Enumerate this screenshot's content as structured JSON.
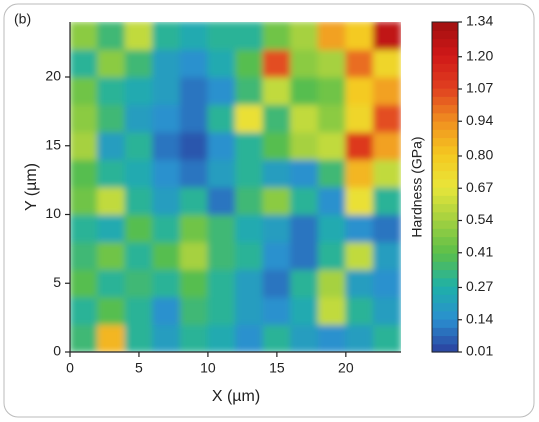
{
  "chart_data": {
    "type": "heatmap",
    "title": "(b)",
    "x_label": "X (µm)",
    "y_label": "Y (µm)",
    "colorbar_label": "Hardness (GPa)",
    "x": [
      0,
      2,
      4,
      6,
      8,
      10,
      12,
      14,
      16,
      18,
      20,
      22,
      24
    ],
    "y": [
      0,
      2,
      4,
      6,
      8,
      10,
      12,
      14,
      16,
      18,
      20,
      22,
      24
    ],
    "z": [
      [
        0.35,
        0.85,
        0.3,
        0.2,
        0.3,
        0.25,
        0.15,
        0.3,
        0.2,
        0.15,
        0.2,
        0.3
      ],
      [
        0.3,
        0.4,
        0.3,
        0.15,
        0.35,
        0.3,
        0.2,
        0.15,
        0.25,
        0.6,
        0.3,
        0.2
      ],
      [
        0.4,
        0.3,
        0.35,
        0.3,
        0.4,
        0.3,
        0.2,
        0.1,
        0.3,
        0.55,
        0.2,
        0.15
      ],
      [
        0.35,
        0.45,
        0.3,
        0.4,
        0.55,
        0.35,
        0.3,
        0.15,
        0.1,
        0.3,
        0.6,
        0.2
      ],
      [
        0.3,
        0.25,
        0.4,
        0.3,
        0.45,
        0.35,
        0.25,
        0.2,
        0.1,
        0.25,
        0.15,
        0.1
      ],
      [
        0.45,
        0.6,
        0.3,
        0.2,
        0.3,
        0.1,
        0.35,
        0.5,
        0.3,
        0.15,
        0.7,
        0.3
      ],
      [
        0.4,
        0.3,
        0.25,
        0.15,
        0.1,
        0.2,
        0.3,
        0.2,
        0.15,
        0.35,
        0.85,
        0.6
      ],
      [
        0.55,
        0.2,
        0.3,
        0.1,
        0.05,
        0.15,
        0.3,
        0.4,
        0.55,
        0.6,
        1.1,
        0.9
      ],
      [
        0.5,
        0.35,
        0.2,
        0.15,
        0.1,
        0.3,
        0.7,
        0.35,
        0.6,
        0.5,
        0.75,
        1.05
      ],
      [
        0.45,
        0.3,
        0.25,
        0.2,
        0.1,
        0.15,
        0.35,
        0.6,
        0.4,
        0.45,
        0.8,
        0.9
      ],
      [
        0.3,
        0.5,
        0.35,
        0.2,
        0.15,
        0.25,
        0.4,
        1.05,
        0.5,
        0.55,
        1.0,
        0.75
      ],
      [
        0.5,
        0.35,
        0.6,
        0.3,
        0.25,
        0.3,
        0.3,
        0.45,
        0.55,
        0.9,
        0.8,
        1.25
      ]
    ],
    "xlim": [
      0,
      24
    ],
    "ylim": [
      0,
      24
    ],
    "xticks": [
      0,
      5,
      10,
      15,
      20
    ],
    "yticks": [
      0,
      5,
      10,
      15,
      20
    ],
    "zlim": [
      0.01,
      1.34
    ],
    "zticks": [
      1.34,
      {
        "value": 1.2,
        "label": "1.20"
      },
      1.07,
      0.94,
      {
        "value": 0.8,
        "label": "0.80"
      },
      0.67,
      0.54,
      0.41,
      0.27,
      0.14,
      0.01
    ],
    "colors": [
      "#2b3f9e",
      "#2a8fd0",
      "#1fb0a8",
      "#5abf4a",
      "#a2d040",
      "#e8e63a",
      "#f5c820",
      "#f09020",
      "#e04020",
      "#d01818",
      "#a01010"
    ]
  }
}
